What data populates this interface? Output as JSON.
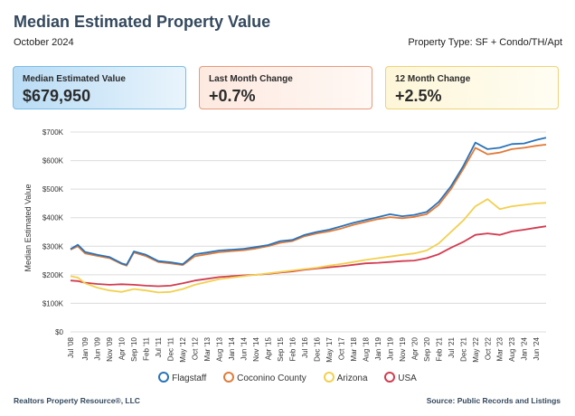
{
  "header": {
    "title": "Median Estimated Property Value",
    "subtitle": "October 2024",
    "property_type": "Property Type: SF + Condo/TH/Apt"
  },
  "cards": [
    {
      "label": "Median Estimated Value",
      "value": "$679,950"
    },
    {
      "label": "Last Month Change",
      "value": "+0.7%"
    },
    {
      "label": "12 Month Change",
      "value": "+2.5%"
    }
  ],
  "footer": {
    "left": "Realtors Property Resource®, LLC",
    "right": "Source: Public Records and Listings"
  },
  "chart_data": {
    "type": "line",
    "ylabel": "Median Estimated Value",
    "ylim": [
      0,
      700000
    ],
    "yticks": [
      0,
      100000,
      200000,
      300000,
      400000,
      500000,
      600000,
      700000
    ],
    "ytick_labels": [
      "$0",
      "$100K",
      "$200K",
      "$300K",
      "$400K",
      "$500K",
      "$600K",
      "$700K"
    ],
    "xrange": [
      "2008-07",
      "2024-10"
    ],
    "xtick_labels": [
      "Jul '08",
      "Jan '09",
      "Jun '09",
      "Nov '09",
      "Apr '10",
      "Sep '10",
      "Feb '11",
      "Jul '11",
      "Dec '11",
      "May '12",
      "Oct '12",
      "Mar '13",
      "Aug '13",
      "Jan '14",
      "Jun '14",
      "Nov '14",
      "Apr '15",
      "Sep '15",
      "Feb '16",
      "Jul '16",
      "Dec '16",
      "May '17",
      "Oct '17",
      "Mar '18",
      "Aug '18",
      "Jan '19",
      "Jun '19",
      "Nov '19",
      "Apr '20",
      "Sep '20",
      "Feb '21",
      "Jul '21",
      "Dec '21",
      "May '22",
      "Oct '22",
      "Mar '23",
      "Aug '23",
      "Jan '24",
      "Jun '24"
    ],
    "xtick_dates": [
      "2008-07",
      "2009-01",
      "2009-06",
      "2009-11",
      "2010-04",
      "2010-09",
      "2011-02",
      "2011-07",
      "2011-12",
      "2012-05",
      "2012-10",
      "2013-03",
      "2013-08",
      "2014-01",
      "2014-06",
      "2014-11",
      "2015-04",
      "2015-09",
      "2016-02",
      "2016-07",
      "2016-12",
      "2017-05",
      "2017-10",
      "2018-03",
      "2018-08",
      "2019-01",
      "2019-06",
      "2019-11",
      "2020-04",
      "2020-09",
      "2021-02",
      "2021-07",
      "2021-12",
      "2022-05",
      "2022-10",
      "2023-03",
      "2023-08",
      "2024-01",
      "2024-06"
    ],
    "grid": "horizontal",
    "legend_position": "bottom",
    "series": [
      {
        "name": "Flagstaff",
        "color": "#2a73b8",
        "points": [
          [
            "2008-07",
            290000
          ],
          [
            "2008-10",
            305000
          ],
          [
            "2009-01",
            280000
          ],
          [
            "2009-06",
            270000
          ],
          [
            "2009-11",
            262000
          ],
          [
            "2010-04",
            240000
          ],
          [
            "2010-06",
            235000
          ],
          [
            "2010-09",
            282000
          ],
          [
            "2011-02",
            270000
          ],
          [
            "2011-07",
            248000
          ],
          [
            "2011-12",
            244000
          ],
          [
            "2012-05",
            237000
          ],
          [
            "2012-10",
            272000
          ],
          [
            "2013-03",
            278000
          ],
          [
            "2013-08",
            285000
          ],
          [
            "2014-01",
            288000
          ],
          [
            "2014-06",
            291000
          ],
          [
            "2014-11",
            297000
          ],
          [
            "2015-04",
            304000
          ],
          [
            "2015-09",
            318000
          ],
          [
            "2016-02",
            322000
          ],
          [
            "2016-07",
            340000
          ],
          [
            "2016-12",
            350000
          ],
          [
            "2017-05",
            358000
          ],
          [
            "2017-10",
            370000
          ],
          [
            "2018-03",
            382000
          ],
          [
            "2018-08",
            392000
          ],
          [
            "2019-01",
            402000
          ],
          [
            "2019-06",
            412000
          ],
          [
            "2019-11",
            405000
          ],
          [
            "2020-04",
            410000
          ],
          [
            "2020-09",
            420000
          ],
          [
            "2021-02",
            455000
          ],
          [
            "2021-07",
            510000
          ],
          [
            "2021-12",
            580000
          ],
          [
            "2022-05",
            663000
          ],
          [
            "2022-10",
            640000
          ],
          [
            "2023-03",
            645000
          ],
          [
            "2023-08",
            658000
          ],
          [
            "2024-01",
            660000
          ],
          [
            "2024-06",
            672000
          ],
          [
            "2024-10",
            680000
          ]
        ]
      },
      {
        "name": "Coconino County",
        "color": "#e07b39",
        "points": [
          [
            "2008-07",
            288000
          ],
          [
            "2008-10",
            300000
          ],
          [
            "2009-01",
            275000
          ],
          [
            "2009-06",
            266000
          ],
          [
            "2009-11",
            258000
          ],
          [
            "2010-04",
            238000
          ],
          [
            "2010-06",
            232000
          ],
          [
            "2010-09",
            278000
          ],
          [
            "2011-02",
            265000
          ],
          [
            "2011-07",
            245000
          ],
          [
            "2011-12",
            240000
          ],
          [
            "2012-05",
            234000
          ],
          [
            "2012-10",
            265000
          ],
          [
            "2013-03",
            272000
          ],
          [
            "2013-08",
            279000
          ],
          [
            "2014-01",
            283000
          ],
          [
            "2014-06",
            286000
          ],
          [
            "2014-11",
            292000
          ],
          [
            "2015-04",
            300000
          ],
          [
            "2015-09",
            312000
          ],
          [
            "2016-02",
            318000
          ],
          [
            "2016-07",
            335000
          ],
          [
            "2016-12",
            345000
          ],
          [
            "2017-05",
            352000
          ],
          [
            "2017-10",
            362000
          ],
          [
            "2018-03",
            375000
          ],
          [
            "2018-08",
            385000
          ],
          [
            "2019-01",
            395000
          ],
          [
            "2019-06",
            402000
          ],
          [
            "2019-11",
            398000
          ],
          [
            "2020-04",
            403000
          ],
          [
            "2020-09",
            412000
          ],
          [
            "2021-02",
            445000
          ],
          [
            "2021-07",
            500000
          ],
          [
            "2021-12",
            570000
          ],
          [
            "2022-05",
            645000
          ],
          [
            "2022-10",
            622000
          ],
          [
            "2023-03",
            628000
          ],
          [
            "2023-08",
            640000
          ],
          [
            "2024-01",
            645000
          ],
          [
            "2024-06",
            652000
          ],
          [
            "2024-10",
            656000
          ]
        ]
      },
      {
        "name": "Arizona",
        "color": "#f2d04f",
        "points": [
          [
            "2008-07",
            195000
          ],
          [
            "2008-10",
            190000
          ],
          [
            "2009-01",
            170000
          ],
          [
            "2009-06",
            155000
          ],
          [
            "2009-11",
            145000
          ],
          [
            "2010-04",
            140000
          ],
          [
            "2010-09",
            150000
          ],
          [
            "2011-02",
            145000
          ],
          [
            "2011-07",
            138000
          ],
          [
            "2011-12",
            140000
          ],
          [
            "2012-05",
            150000
          ],
          [
            "2012-10",
            165000
          ],
          [
            "2013-03",
            175000
          ],
          [
            "2013-08",
            185000
          ],
          [
            "2014-01",
            190000
          ],
          [
            "2014-06",
            195000
          ],
          [
            "2014-11",
            200000
          ],
          [
            "2015-04",
            205000
          ],
          [
            "2015-09",
            210000
          ],
          [
            "2016-02",
            215000
          ],
          [
            "2016-07",
            220000
          ],
          [
            "2016-12",
            225000
          ],
          [
            "2017-05",
            232000
          ],
          [
            "2017-10",
            238000
          ],
          [
            "2018-03",
            245000
          ],
          [
            "2018-08",
            252000
          ],
          [
            "2019-01",
            258000
          ],
          [
            "2019-06",
            264000
          ],
          [
            "2019-11",
            270000
          ],
          [
            "2020-04",
            275000
          ],
          [
            "2020-09",
            285000
          ],
          [
            "2021-02",
            310000
          ],
          [
            "2021-07",
            350000
          ],
          [
            "2021-12",
            390000
          ],
          [
            "2022-05",
            440000
          ],
          [
            "2022-10",
            465000
          ],
          [
            "2023-03",
            430000
          ],
          [
            "2023-08",
            440000
          ],
          [
            "2024-01",
            445000
          ],
          [
            "2024-06",
            450000
          ],
          [
            "2024-10",
            452000
          ]
        ]
      },
      {
        "name": "USA",
        "color": "#d23c50",
        "points": [
          [
            "2008-07",
            180000
          ],
          [
            "2008-10",
            178000
          ],
          [
            "2009-01",
            172000
          ],
          [
            "2009-06",
            168000
          ],
          [
            "2009-11",
            165000
          ],
          [
            "2010-04",
            167000
          ],
          [
            "2010-09",
            165000
          ],
          [
            "2011-02",
            162000
          ],
          [
            "2011-07",
            160000
          ],
          [
            "2011-12",
            162000
          ],
          [
            "2012-05",
            170000
          ],
          [
            "2012-10",
            180000
          ],
          [
            "2013-03",
            186000
          ],
          [
            "2013-08",
            192000
          ],
          [
            "2014-01",
            195000
          ],
          [
            "2014-06",
            198000
          ],
          [
            "2014-11",
            200000
          ],
          [
            "2015-04",
            203000
          ],
          [
            "2015-09",
            208000
          ],
          [
            "2016-02",
            212000
          ],
          [
            "2016-07",
            218000
          ],
          [
            "2016-12",
            222000
          ],
          [
            "2017-05",
            226000
          ],
          [
            "2017-10",
            230000
          ],
          [
            "2018-03",
            235000
          ],
          [
            "2018-08",
            240000
          ],
          [
            "2019-01",
            242000
          ],
          [
            "2019-06",
            245000
          ],
          [
            "2019-11",
            248000
          ],
          [
            "2020-04",
            250000
          ],
          [
            "2020-09",
            258000
          ],
          [
            "2021-02",
            272000
          ],
          [
            "2021-07",
            295000
          ],
          [
            "2021-12",
            315000
          ],
          [
            "2022-05",
            340000
          ],
          [
            "2022-10",
            345000
          ],
          [
            "2023-03",
            340000
          ],
          [
            "2023-08",
            352000
          ],
          [
            "2024-01",
            358000
          ],
          [
            "2024-06",
            365000
          ],
          [
            "2024-10",
            370000
          ]
        ]
      }
    ]
  }
}
